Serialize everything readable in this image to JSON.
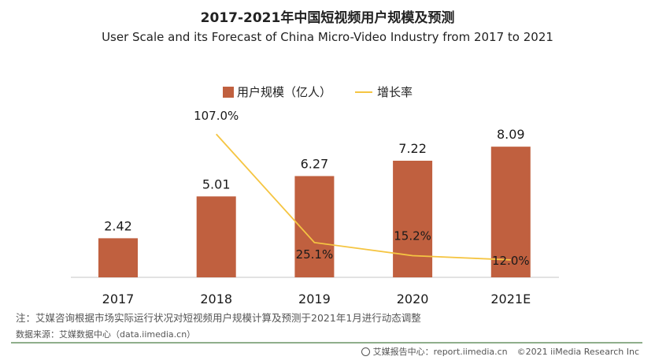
{
  "chart_data": {
    "type": "bar",
    "title": "2017-2021年中国短视频用户规模及预测",
    "subtitle": "User Scale and its Forecast of China Micro-Video Industry from 2017 to 2021",
    "categories": [
      "2017",
      "2018",
      "2019",
      "2020",
      "2021E"
    ],
    "series": [
      {
        "name": "用户规模（亿人）",
        "type": "bar",
        "color": "#C0603F",
        "values": [
          2.42,
          5.01,
          6.27,
          7.22,
          8.09
        ],
        "labels": [
          "2.42",
          "5.01",
          "6.27",
          "7.22",
          "8.09"
        ]
      },
      {
        "name": "增长率",
        "type": "line",
        "color": "#F5C542",
        "values": [
          null,
          107.0,
          25.1,
          15.2,
          12.0
        ],
        "labels": [
          "",
          "107.0%",
          "25.1%",
          "15.2%",
          "12.0%"
        ]
      }
    ],
    "xlabel": "",
    "ylabel": "",
    "ylim": [
      0,
      10
    ],
    "y2lim": [
      0,
      120
    ],
    "grid": false,
    "legend": "top-center"
  },
  "note": "注：艾媒咨询根据市场实际运行状况对短视频用户规模计算及预测于2021年1月进行动态调整",
  "source": "数据来源：艾媒数据中心（data.iimedia.cn）",
  "footer": {
    "report": "艾媒报告中心：report.iimedia.cn",
    "copyright": "©2021  iiMedia Research  Inc"
  }
}
